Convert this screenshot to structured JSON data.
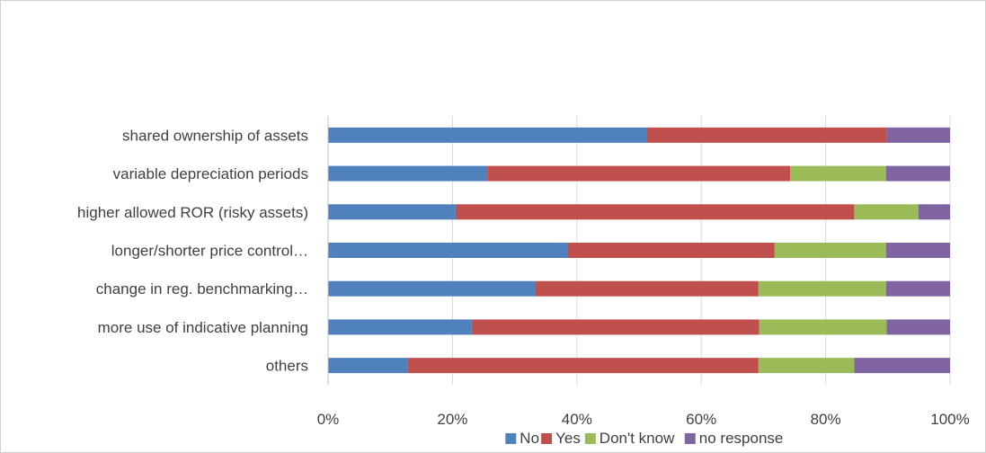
{
  "chart_data": {
    "type": "bar",
    "orientation": "horizontal",
    "stacked": "percent",
    "categories": [
      "shared ownership of assets",
      "variable depreciation periods",
      "higher allowed ROR (risky assets)",
      "longer/shorter price control…",
      "change in reg. benchmarking…",
      "more use of indicative planning",
      "others"
    ],
    "series": [
      {
        "name": "No",
        "color": "#4f81bd",
        "values": [
          51.3,
          25.6,
          20.5,
          38.5,
          33.3,
          23.1,
          12.8
        ]
      },
      {
        "name": "Yes",
        "color": "#c0504d",
        "values": [
          38.5,
          48.7,
          64.1,
          33.3,
          35.9,
          46.2,
          56.4
        ]
      },
      {
        "name": "Don't know",
        "color": "#9bbb59",
        "values": [
          0.0,
          15.4,
          10.3,
          17.9,
          20.5,
          20.5,
          15.4
        ]
      },
      {
        "name": "no response",
        "color": "#8064a2",
        "values": [
          10.2,
          10.3,
          5.1,
          10.3,
          10.3,
          10.2,
          15.4
        ]
      }
    ],
    "xticks": [
      "0%",
      "20%",
      "40%",
      "60%",
      "80%",
      "100%"
    ],
    "xlim": [
      0,
      100
    ],
    "grid": "vertical",
    "legend": "bottom",
    "title": "",
    "xlabel": "",
    "ylabel": ""
  }
}
